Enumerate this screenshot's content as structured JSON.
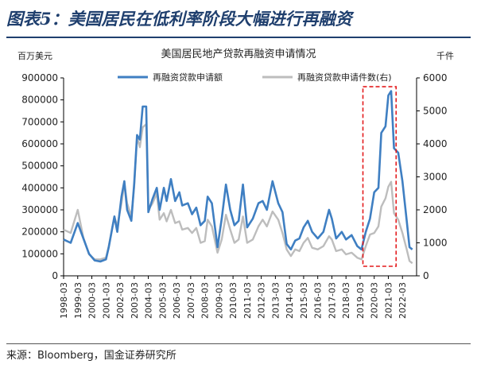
{
  "figure": {
    "title": "图表5：美国居民在低利率阶段大幅进行再融资",
    "source": "来源：Bloomberg，国金证券研究所"
  },
  "chart_data": {
    "type": "line",
    "title": "美国居民地产贷款再融资申请情况",
    "y_left_unit": "百万美元",
    "y_right_unit": "千件",
    "y_left_lim": [
      0,
      900000
    ],
    "y_right_lim": [
      0,
      6000
    ],
    "y_left_ticks": [
      "0",
      "100000",
      "200000",
      "300000",
      "400000",
      "500000",
      "600000",
      "700000",
      "800000",
      "900000"
    ],
    "y_right_ticks": [
      "0",
      "1000",
      "2000",
      "3000",
      "4000",
      "5000",
      "6000"
    ],
    "x_range": [
      1998.0,
      2023.0
    ],
    "x_ticks": [
      "1998-03",
      "1999-03",
      "2000-03",
      "2001-03",
      "2002-03",
      "2003-03",
      "2004-03",
      "2005-03",
      "2006-03",
      "2007-03",
      "2008-03",
      "2009-03",
      "2010-03",
      "2011-03",
      "2012-03",
      "2013-03",
      "2014-03",
      "2015-03",
      "2016-03",
      "2017-03",
      "2018-03",
      "2019-03",
      "2020-03",
      "2021-03",
      "2022-03"
    ],
    "colors": {
      "amount": "#3f7fc2",
      "count": "#bdbdbd",
      "highlight": "#e31a1c"
    },
    "series": [
      {
        "name": "再融资贷款申请额",
        "axis": "left",
        "points": [
          [
            1998.0,
            165000
          ],
          [
            1998.5,
            150000
          ],
          [
            1999.0,
            240000
          ],
          [
            1999.4,
            170000
          ],
          [
            1999.8,
            100000
          ],
          [
            2000.2,
            70000
          ],
          [
            2000.6,
            65000
          ],
          [
            2001.0,
            75000
          ],
          [
            2001.2,
            130000
          ],
          [
            2001.6,
            270000
          ],
          [
            2001.8,
            200000
          ],
          [
            2002.1,
            360000
          ],
          [
            2002.3,
            430000
          ],
          [
            2002.5,
            300000
          ],
          [
            2002.8,
            250000
          ],
          [
            2003.0,
            420000
          ],
          [
            2003.2,
            640000
          ],
          [
            2003.4,
            620000
          ],
          [
            2003.6,
            770000
          ],
          [
            2003.85,
            770000
          ],
          [
            2004.0,
            290000
          ],
          [
            2004.3,
            350000
          ],
          [
            2004.6,
            400000
          ],
          [
            2004.8,
            300000
          ],
          [
            2005.1,
            400000
          ],
          [
            2005.3,
            340000
          ],
          [
            2005.6,
            440000
          ],
          [
            2005.9,
            340000
          ],
          [
            2006.2,
            380000
          ],
          [
            2006.4,
            320000
          ],
          [
            2006.8,
            330000
          ],
          [
            2007.1,
            280000
          ],
          [
            2007.4,
            310000
          ],
          [
            2007.7,
            230000
          ],
          [
            2008.0,
            250000
          ],
          [
            2008.2,
            360000
          ],
          [
            2008.5,
            330000
          ],
          [
            2008.9,
            130000
          ],
          [
            2009.2,
            260000
          ],
          [
            2009.5,
            415000
          ],
          [
            2009.8,
            300000
          ],
          [
            2010.1,
            230000
          ],
          [
            2010.4,
            250000
          ],
          [
            2010.7,
            415000
          ],
          [
            2011.0,
            220000
          ],
          [
            2011.4,
            260000
          ],
          [
            2011.8,
            330000
          ],
          [
            2012.1,
            340000
          ],
          [
            2012.4,
            300000
          ],
          [
            2012.8,
            430000
          ],
          [
            2013.2,
            330000
          ],
          [
            2013.5,
            290000
          ],
          [
            2013.8,
            145000
          ],
          [
            2014.1,
            120000
          ],
          [
            2014.4,
            160000
          ],
          [
            2014.7,
            170000
          ],
          [
            2015.0,
            220000
          ],
          [
            2015.3,
            250000
          ],
          [
            2015.6,
            200000
          ],
          [
            2016.0,
            170000
          ],
          [
            2016.4,
            200000
          ],
          [
            2016.8,
            300000
          ],
          [
            2017.0,
            260000
          ],
          [
            2017.3,
            170000
          ],
          [
            2017.7,
            200000
          ],
          [
            2018.0,
            165000
          ],
          [
            2018.4,
            185000
          ],
          [
            2018.8,
            135000
          ],
          [
            2019.1,
            120000
          ],
          [
            2019.4,
            200000
          ],
          [
            2019.7,
            260000
          ],
          [
            2020.0,
            380000
          ],
          [
            2020.3,
            400000
          ],
          [
            2020.5,
            650000
          ],
          [
            2020.8,
            680000
          ],
          [
            2021.0,
            820000
          ],
          [
            2021.2,
            840000
          ],
          [
            2021.4,
            580000
          ],
          [
            2021.7,
            560000
          ],
          [
            2022.0,
            430000
          ],
          [
            2022.3,
            250000
          ],
          [
            2022.5,
            130000
          ],
          [
            2022.7,
            120000
          ]
        ]
      },
      {
        "name": "再融资贷款申请件数(右)",
        "axis": "right",
        "points": [
          [
            1998.0,
            1400
          ],
          [
            1998.5,
            1300
          ],
          [
            1999.0,
            2000
          ],
          [
            1999.4,
            1150
          ],
          [
            1999.8,
            650
          ],
          [
            2000.2,
            500
          ],
          [
            2000.6,
            500
          ],
          [
            2001.0,
            550
          ],
          [
            2001.2,
            900
          ],
          [
            2001.6,
            1800
          ],
          [
            2001.8,
            1500
          ],
          [
            2002.1,
            2200
          ],
          [
            2002.3,
            2800
          ],
          [
            2002.5,
            2200
          ],
          [
            2002.8,
            1800
          ],
          [
            2003.0,
            2700
          ],
          [
            2003.2,
            4200
          ],
          [
            2003.4,
            3900
          ],
          [
            2003.6,
            4500
          ],
          [
            2003.85,
            4600
          ],
          [
            2004.0,
            2000
          ],
          [
            2004.3,
            2200
          ],
          [
            2004.6,
            2500
          ],
          [
            2004.8,
            1700
          ],
          [
            2005.1,
            1900
          ],
          [
            2005.3,
            1650
          ],
          [
            2005.6,
            2000
          ],
          [
            2005.9,
            1600
          ],
          [
            2006.2,
            1650
          ],
          [
            2006.4,
            1400
          ],
          [
            2006.8,
            1450
          ],
          [
            2007.1,
            1300
          ],
          [
            2007.4,
            1450
          ],
          [
            2007.7,
            1000
          ],
          [
            2008.0,
            1050
          ],
          [
            2008.2,
            1700
          ],
          [
            2008.5,
            1500
          ],
          [
            2008.9,
            700
          ],
          [
            2009.2,
            1100
          ],
          [
            2009.5,
            1850
          ],
          [
            2009.8,
            1400
          ],
          [
            2010.1,
            1000
          ],
          [
            2010.4,
            1100
          ],
          [
            2010.7,
            1800
          ],
          [
            2011.0,
            1000
          ],
          [
            2011.4,
            1100
          ],
          [
            2011.8,
            1500
          ],
          [
            2012.1,
            1700
          ],
          [
            2012.4,
            1500
          ],
          [
            2012.8,
            1950
          ],
          [
            2013.2,
            1700
          ],
          [
            2013.5,
            1300
          ],
          [
            2013.8,
            800
          ],
          [
            2014.1,
            600
          ],
          [
            2014.4,
            800
          ],
          [
            2014.7,
            750
          ],
          [
            2015.0,
            1000
          ],
          [
            2015.3,
            1150
          ],
          [
            2015.6,
            850
          ],
          [
            2016.0,
            800
          ],
          [
            2016.4,
            900
          ],
          [
            2016.8,
            1200
          ],
          [
            2017.0,
            1100
          ],
          [
            2017.3,
            750
          ],
          [
            2017.7,
            800
          ],
          [
            2018.0,
            650
          ],
          [
            2018.4,
            700
          ],
          [
            2018.8,
            550
          ],
          [
            2019.1,
            500
          ],
          [
            2019.4,
            900
          ],
          [
            2019.7,
            1250
          ],
          [
            2020.0,
            1300
          ],
          [
            2020.3,
            1500
          ],
          [
            2020.5,
            2100
          ],
          [
            2020.8,
            2350
          ],
          [
            2021.0,
            2700
          ],
          [
            2021.2,
            2850
          ],
          [
            2021.4,
            1900
          ],
          [
            2021.7,
            1700
          ],
          [
            2022.0,
            1300
          ],
          [
            2022.3,
            800
          ],
          [
            2022.5,
            450
          ],
          [
            2022.7,
            380
          ]
        ]
      }
    ],
    "highlight_box": {
      "x": [
        2019.2,
        2021.55
      ],
      "y_left": [
        0,
        860000
      ]
    }
  }
}
